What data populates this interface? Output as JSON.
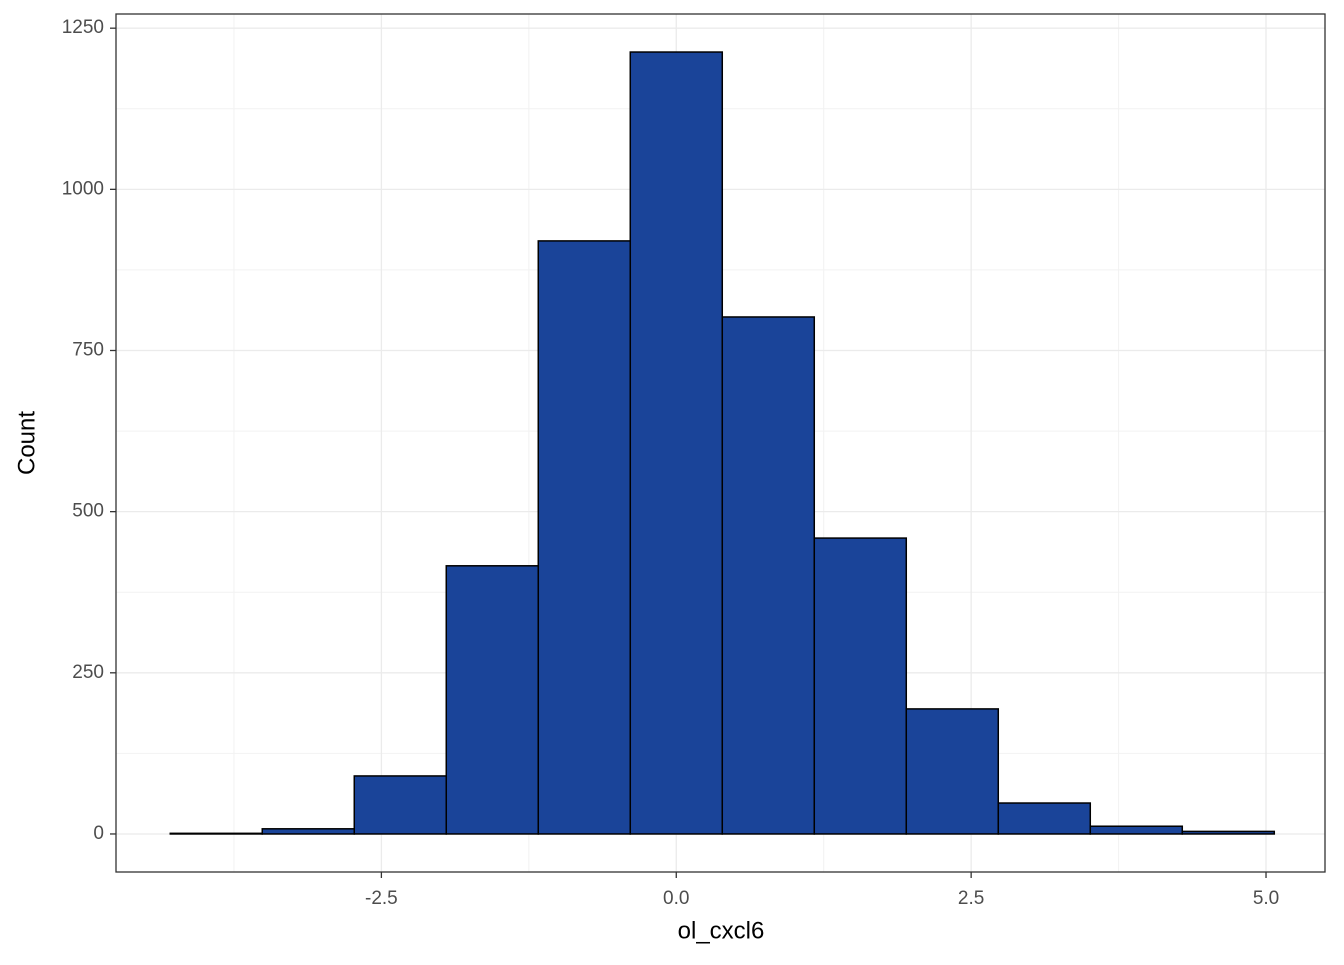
{
  "chart_data": {
    "type": "histogram",
    "x_label": "ol_cxcl6",
    "y_label": "Count",
    "bins": [
      -4.29,
      -3.51,
      -2.73,
      -1.95,
      -1.17,
      -0.39,
      0.39,
      1.17,
      1.95,
      2.73,
      3.51,
      4.29,
      5.07
    ],
    "values": [
      1,
      8,
      90,
      416,
      920,
      1213,
      802,
      459,
      194,
      48,
      12,
      4
    ],
    "color": "#1a4499",
    "xlim": [
      -4.75,
      5.5
    ],
    "ylim": [
      -59,
      1272
    ],
    "xticks": [
      -2.5,
      {
        "value": 0,
        "label": "0.0"
      },
      2.5,
      {
        "value": 5,
        "label": "5.0"
      }
    ],
    "yticks": [
      0,
      250,
      500,
      750,
      1000,
      1250
    ],
    "grid": true
  }
}
